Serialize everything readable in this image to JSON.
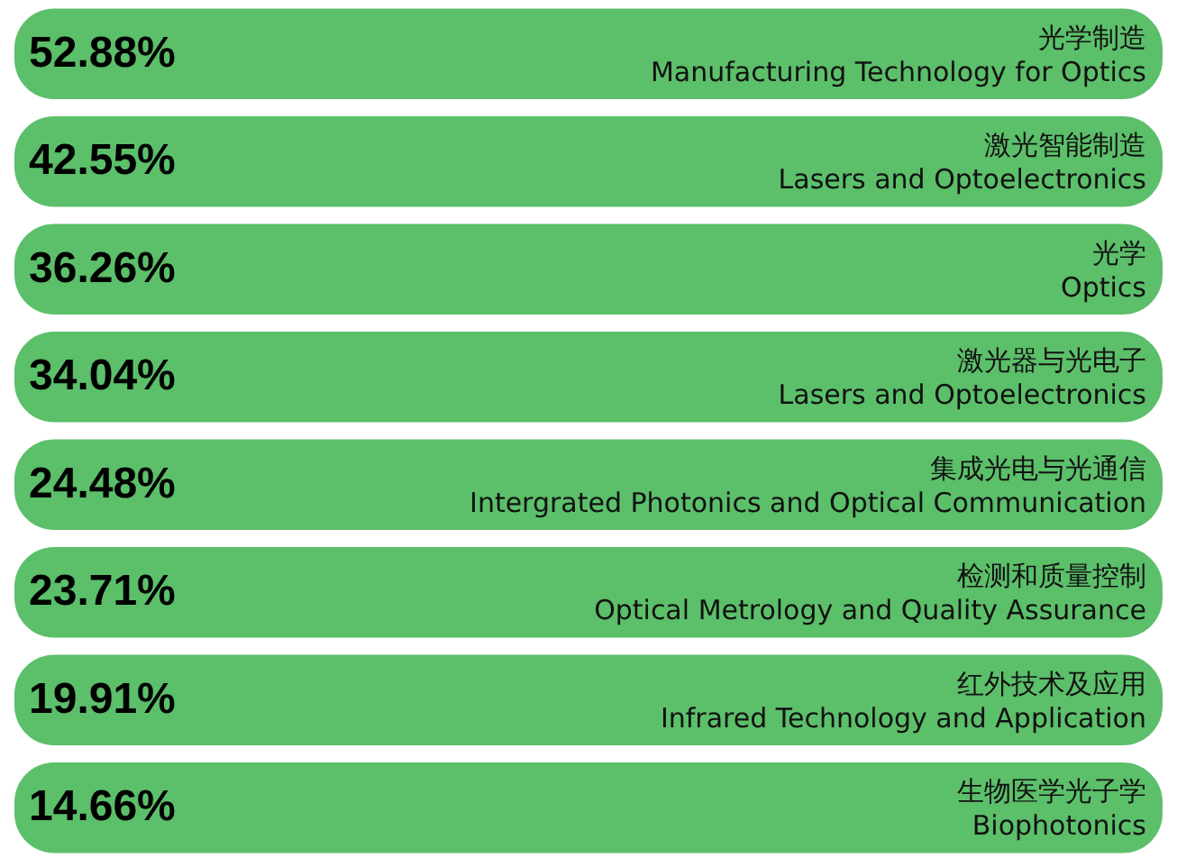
{
  "chart_data": {
    "type": "other",
    "categories": [
      "光学制造\nManufacturing Technology for Optics",
      "激光智能制造\nLasers and Optoelectronics",
      "光学\nOptics",
      "激光器与光电子\nLasers and Optoelectronics",
      "集成光电与光通信\nIntergrated Photonics and Optical Communication",
      "检测和质量控制\nOptical Metrology and Quality Assurance",
      "红外技术及应用\nInfrared Technology and Application",
      "生物医学光子学\nBiophotonics"
    ],
    "values": [
      52.88,
      42.55,
      36.26,
      34.04,
      24.48,
      23.71,
      19.91,
      14.66
    ],
    "value_labels": [
      "52.88%",
      "42.55%",
      "36.26%",
      "34.04%",
      "24.48%",
      "23.71%",
      "19.91%",
      "14.66%"
    ],
    "color": "#5cbf6a"
  }
}
